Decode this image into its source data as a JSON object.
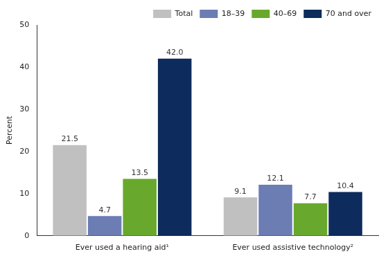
{
  "chart_data": {
    "type": "bar",
    "categories": [
      "Ever used a hearing aid¹",
      "Ever used assistive technology²"
    ],
    "series": [
      {
        "name": "Total",
        "color": "#c0c0c0",
        "values": [
          21.5,
          9.1
        ],
        "value_labels": [
          "21.5",
          "9.1"
        ]
      },
      {
        "name": "18–39",
        "color": "#6b7db3",
        "values": [
          4.7,
          12.1
        ],
        "value_labels": [
          "4.7",
          "12.1"
        ]
      },
      {
        "name": "40–69",
        "color": "#68a92d",
        "values": [
          13.5,
          7.7
        ],
        "value_labels": [
          "13.5",
          "7.7"
        ]
      },
      {
        "name": "70 and over",
        "color": "#0d2b5c",
        "values": [
          42.0,
          10.4
        ],
        "value_labels": [
          "42.0",
          "10.4"
        ]
      }
    ],
    "y_label": "Percent",
    "ylim": [
      0,
      50
    ],
    "yticks": [
      0,
      10,
      20,
      30,
      40,
      50
    ],
    "grid": false,
    "legend": "top-right",
    "data_labels": true
  }
}
